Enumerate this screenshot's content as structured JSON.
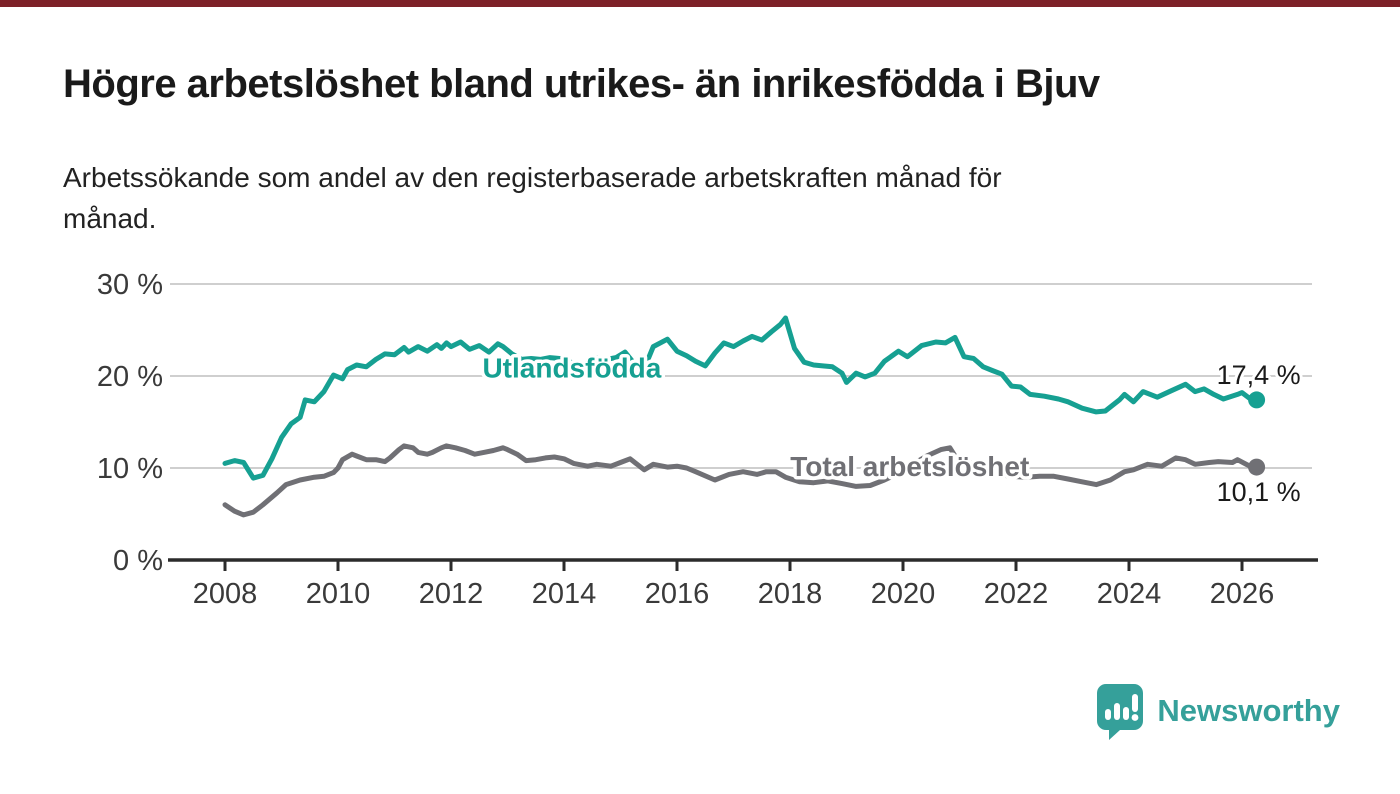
{
  "accent": {
    "top_bar_color": "#7d2128"
  },
  "header": {
    "title": "Högre arbetslöshet bland utrikes- än inrikesfödda i Bjuv",
    "subtitle": "Arbetssökande som andel av den registerbaserade arbetskraften månad för månad."
  },
  "footer": {
    "brand": "Newsworthy",
    "brand_color": "#35a09a"
  },
  "colors": {
    "grid": "#cfcfcf",
    "axis": "#2b2b2b",
    "tick_text": "#3a3a3a",
    "value_label_text": "#1a1a1a"
  },
  "chart_data": {
    "type": "line",
    "title": "Högre arbetslöshet bland utrikes- än inrikesfödda i Bjuv",
    "xlabel": "",
    "ylabel": "",
    "grid": "horizontal",
    "x_axis": {
      "ticks": [
        2008,
        2010,
        2012,
        2014,
        2016,
        2018,
        2020,
        2022,
        2024,
        2026
      ],
      "tick_labels": [
        "2008",
        "2010",
        "2012",
        "2014",
        "2016",
        "2018",
        "2020",
        "2022",
        "2024",
        "2026"
      ],
      "range_years": [
        2007.0,
        2027.3
      ]
    },
    "y_axis": {
      "ticks": [
        0,
        10,
        20,
        30
      ],
      "tick_labels": [
        "0 %",
        "10 %",
        "20 %",
        "30 %"
      ],
      "range": [
        0,
        30
      ],
      "unit": "%"
    },
    "series": [
      {
        "id": "utlandsfodda",
        "name": "Utlandsfödda",
        "color": "#16a092",
        "end_value": 17.4,
        "end_label": "17,4 %",
        "label_at": [
          2014.14,
          20.9
        ],
        "points": [
          [
            2008.0,
            10.5
          ],
          [
            2008.17,
            10.8
          ],
          [
            2008.33,
            10.6
          ],
          [
            2008.5,
            8.9
          ],
          [
            2008.67,
            9.2
          ],
          [
            2008.83,
            11.0
          ],
          [
            2009.0,
            13.3
          ],
          [
            2009.17,
            14.8
          ],
          [
            2009.33,
            15.5
          ],
          [
            2009.42,
            17.4
          ],
          [
            2009.58,
            17.2
          ],
          [
            2009.75,
            18.3
          ],
          [
            2009.92,
            20.1
          ],
          [
            2010.08,
            19.7
          ],
          [
            2010.17,
            20.7
          ],
          [
            2010.33,
            21.2
          ],
          [
            2010.5,
            21.0
          ],
          [
            2010.67,
            21.8
          ],
          [
            2010.83,
            22.4
          ],
          [
            2011.0,
            22.3
          ],
          [
            2011.17,
            23.1
          ],
          [
            2011.25,
            22.6
          ],
          [
            2011.42,
            23.2
          ],
          [
            2011.58,
            22.7
          ],
          [
            2011.75,
            23.4
          ],
          [
            2011.83,
            23.0
          ],
          [
            2011.92,
            23.6
          ],
          [
            2012.0,
            23.2
          ],
          [
            2012.17,
            23.7
          ],
          [
            2012.33,
            22.9
          ],
          [
            2012.5,
            23.3
          ],
          [
            2012.67,
            22.6
          ],
          [
            2012.83,
            23.5
          ],
          [
            2012.92,
            23.2
          ],
          [
            2013.08,
            22.4
          ],
          [
            2013.25,
            21.8
          ],
          [
            2013.42,
            21.9
          ],
          [
            2013.58,
            21.8
          ],
          [
            2013.75,
            22.0
          ],
          [
            2013.92,
            21.9
          ],
          [
            2014.08,
            21.6
          ],
          [
            2014.25,
            21.2
          ],
          [
            2014.42,
            21.5
          ],
          [
            2014.58,
            22.0
          ],
          [
            2014.75,
            21.8
          ],
          [
            2014.92,
            22.0
          ],
          [
            2015.08,
            22.6
          ],
          [
            2015.25,
            21.3
          ],
          [
            2015.42,
            20.8
          ],
          [
            2015.58,
            23.2
          ],
          [
            2015.83,
            24.0
          ],
          [
            2016.0,
            22.7
          ],
          [
            2016.17,
            22.2
          ],
          [
            2016.33,
            21.6
          ],
          [
            2016.5,
            21.1
          ],
          [
            2016.67,
            22.5
          ],
          [
            2016.83,
            23.6
          ],
          [
            2017.0,
            23.2
          ],
          [
            2017.17,
            23.8
          ],
          [
            2017.33,
            24.3
          ],
          [
            2017.5,
            23.9
          ],
          [
            2017.67,
            24.8
          ],
          [
            2017.83,
            25.6
          ],
          [
            2017.92,
            26.3
          ],
          [
            2018.08,
            23.0
          ],
          [
            2018.25,
            21.5
          ],
          [
            2018.42,
            21.2
          ],
          [
            2018.58,
            21.1
          ],
          [
            2018.75,
            21.0
          ],
          [
            2018.92,
            20.3
          ],
          [
            2019.0,
            19.3
          ],
          [
            2019.17,
            20.3
          ],
          [
            2019.33,
            19.9
          ],
          [
            2019.5,
            20.3
          ],
          [
            2019.67,
            21.6
          ],
          [
            2019.92,
            22.7
          ],
          [
            2020.08,
            22.1
          ],
          [
            2020.33,
            23.3
          ],
          [
            2020.58,
            23.7
          ],
          [
            2020.75,
            23.6
          ],
          [
            2020.92,
            24.2
          ],
          [
            2021.08,
            22.1
          ],
          [
            2021.25,
            21.9
          ],
          [
            2021.42,
            21.0
          ],
          [
            2021.58,
            20.6
          ],
          [
            2021.75,
            20.2
          ],
          [
            2021.92,
            18.9
          ],
          [
            2022.08,
            18.8
          ],
          [
            2022.25,
            18.0
          ],
          [
            2022.5,
            17.8
          ],
          [
            2022.75,
            17.5
          ],
          [
            2022.92,
            17.2
          ],
          [
            2023.17,
            16.5
          ],
          [
            2023.42,
            16.1
          ],
          [
            2023.58,
            16.2
          ],
          [
            2023.83,
            17.4
          ],
          [
            2023.92,
            18.0
          ],
          [
            2024.08,
            17.2
          ],
          [
            2024.25,
            18.3
          ],
          [
            2024.5,
            17.7
          ],
          [
            2024.75,
            18.4
          ],
          [
            2025.0,
            19.1
          ],
          [
            2025.17,
            18.3
          ],
          [
            2025.33,
            18.6
          ],
          [
            2025.5,
            18.0
          ],
          [
            2025.67,
            17.5
          ],
          [
            2025.92,
            18.0
          ],
          [
            2026.0,
            18.2
          ],
          [
            2026.17,
            17.4
          ]
        ]
      },
      {
        "id": "total",
        "name": "Total arbetslöshet",
        "color": "#707075",
        "end_value": 10.1,
        "end_label": "10,1 %",
        "label_at": [
          2020.12,
          10.2
        ],
        "points": [
          [
            2008.0,
            6.0
          ],
          [
            2008.17,
            5.3
          ],
          [
            2008.33,
            4.9
          ],
          [
            2008.5,
            5.2
          ],
          [
            2008.67,
            6.0
          ],
          [
            2008.92,
            7.3
          ],
          [
            2009.08,
            8.2
          ],
          [
            2009.33,
            8.7
          ],
          [
            2009.58,
            9.0
          ],
          [
            2009.75,
            9.1
          ],
          [
            2009.92,
            9.5
          ],
          [
            2010.0,
            10.0
          ],
          [
            2010.08,
            10.9
          ],
          [
            2010.25,
            11.5
          ],
          [
            2010.33,
            11.3
          ],
          [
            2010.5,
            10.9
          ],
          [
            2010.67,
            10.9
          ],
          [
            2010.83,
            10.7
          ],
          [
            2010.92,
            11.1
          ],
          [
            2011.08,
            12.0
          ],
          [
            2011.17,
            12.4
          ],
          [
            2011.33,
            12.2
          ],
          [
            2011.42,
            11.7
          ],
          [
            2011.58,
            11.5
          ],
          [
            2011.67,
            11.7
          ],
          [
            2011.83,
            12.2
          ],
          [
            2011.92,
            12.4
          ],
          [
            2012.08,
            12.2
          ],
          [
            2012.25,
            11.9
          ],
          [
            2012.42,
            11.5
          ],
          [
            2012.58,
            11.7
          ],
          [
            2012.75,
            11.9
          ],
          [
            2012.92,
            12.2
          ],
          [
            2013.0,
            12.0
          ],
          [
            2013.17,
            11.5
          ],
          [
            2013.33,
            10.8
          ],
          [
            2013.5,
            10.9
          ],
          [
            2013.67,
            11.1
          ],
          [
            2013.83,
            11.2
          ],
          [
            2014.0,
            11.0
          ],
          [
            2014.17,
            10.5
          ],
          [
            2014.42,
            10.2
          ],
          [
            2014.58,
            10.4
          ],
          [
            2014.83,
            10.2
          ],
          [
            2015.0,
            10.6
          ],
          [
            2015.17,
            11.0
          ],
          [
            2015.42,
            9.8
          ],
          [
            2015.58,
            10.4
          ],
          [
            2015.83,
            10.1
          ],
          [
            2016.0,
            10.2
          ],
          [
            2016.17,
            10.0
          ],
          [
            2016.33,
            9.6
          ],
          [
            2016.67,
            8.7
          ],
          [
            2016.92,
            9.3
          ],
          [
            2017.17,
            9.6
          ],
          [
            2017.42,
            9.3
          ],
          [
            2017.58,
            9.6
          ],
          [
            2017.75,
            9.6
          ],
          [
            2017.92,
            9.0
          ],
          [
            2018.17,
            8.5
          ],
          [
            2018.42,
            8.4
          ],
          [
            2018.67,
            8.6
          ],
          [
            2018.92,
            8.3
          ],
          [
            2019.17,
            8.0
          ],
          [
            2019.42,
            8.1
          ],
          [
            2019.67,
            8.7
          ],
          [
            2019.92,
            9.4
          ],
          [
            2020.17,
            10.4
          ],
          [
            2020.42,
            11.3
          ],
          [
            2020.67,
            12.0
          ],
          [
            2020.83,
            12.2
          ],
          [
            2020.92,
            11.3
          ],
          [
            2021.17,
            10.6
          ],
          [
            2021.42,
            9.8
          ],
          [
            2021.67,
            9.3
          ],
          [
            2021.92,
            9.1
          ],
          [
            2022.17,
            9.0
          ],
          [
            2022.42,
            9.1
          ],
          [
            2022.67,
            9.1
          ],
          [
            2022.92,
            8.8
          ],
          [
            2023.17,
            8.5
          ],
          [
            2023.42,
            8.2
          ],
          [
            2023.67,
            8.7
          ],
          [
            2023.92,
            9.6
          ],
          [
            2024.08,
            9.8
          ],
          [
            2024.33,
            10.4
          ],
          [
            2024.58,
            10.2
          ],
          [
            2024.83,
            11.1
          ],
          [
            2025.0,
            10.9
          ],
          [
            2025.17,
            10.4
          ],
          [
            2025.42,
            10.6
          ],
          [
            2025.58,
            10.7
          ],
          [
            2025.83,
            10.6
          ],
          [
            2025.92,
            10.9
          ],
          [
            2026.17,
            10.1
          ]
        ]
      }
    ]
  }
}
